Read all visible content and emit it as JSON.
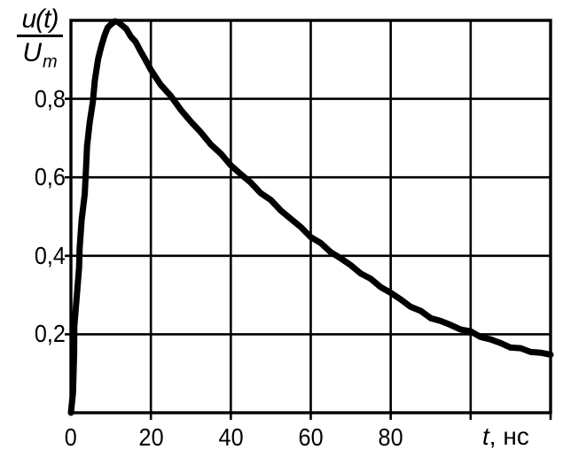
{
  "figure": {
    "background_color": "#ffffff",
    "ink_color": "#000000"
  },
  "chart_data": {
    "type": "line",
    "title": "",
    "ylabel": "u(t)/Um",
    "ylabel_fraction": {
      "numerator": "u(t)",
      "denominator_main": "U",
      "denominator_sub": "m"
    },
    "xlabel": "t, нс",
    "xlabel_variable": "t",
    "xlabel_unit": ", нс",
    "x_range": [
      0,
      120
    ],
    "y_range": [
      0,
      1.0
    ],
    "grid": true,
    "legend_position": "none",
    "x_ticks": [
      {
        "value": 0,
        "label": "0"
      },
      {
        "value": 20,
        "label": "20"
      },
      {
        "value": 40,
        "label": "40"
      },
      {
        "value": 60,
        "label": "60"
      },
      {
        "value": 80,
        "label": "80"
      }
    ],
    "y_ticks": [
      {
        "value": 0.2,
        "label": "0,2"
      },
      {
        "value": 0.4,
        "label": "0,4"
      },
      {
        "value": 0.6,
        "label": "0,6"
      },
      {
        "value": 0.8,
        "label": "0,8"
      }
    ],
    "x_gridlines": [
      20,
      40,
      60,
      80,
      100,
      120
    ],
    "y_gridlines": [
      0.2,
      0.4,
      0.6,
      0.8
    ],
    "series": [
      {
        "name": "u(t)/Um",
        "points": [
          [
            0,
            0
          ],
          [
            0.5,
            0.05
          ],
          [
            0.8,
            0.15
          ],
          [
            1.0,
            0.22
          ],
          [
            1.4,
            0.3
          ],
          [
            1.9,
            0.37
          ],
          [
            2.3,
            0.42
          ],
          [
            2.8,
            0.49
          ],
          [
            3.3,
            0.56
          ],
          [
            3.7,
            0.62
          ],
          [
            4.2,
            0.68
          ],
          [
            4.7,
            0.74
          ],
          [
            5.3,
            0.79
          ],
          [
            6.0,
            0.85
          ],
          [
            6.8,
            0.9
          ],
          [
            7.6,
            0.935
          ],
          [
            8.4,
            0.962
          ],
          [
            9.2,
            0.98
          ],
          [
            10.0,
            0.992
          ],
          [
            11.0,
            1.0
          ],
          [
            11.9,
            0.996
          ],
          [
            12.8,
            0.988
          ],
          [
            13.8,
            0.977
          ],
          [
            15.0,
            0.961
          ],
          [
            16.2,
            0.943
          ],
          [
            17.4,
            0.923
          ],
          [
            18.7,
            0.899
          ],
          [
            20,
            0.872
          ],
          [
            22.5,
            0.838
          ],
          [
            25,
            0.805
          ],
          [
            27.5,
            0.773
          ],
          [
            30,
            0.742
          ],
          [
            32.5,
            0.713
          ],
          [
            35,
            0.686
          ],
          [
            37.5,
            0.658
          ],
          [
            40,
            0.632
          ],
          [
            42.5,
            0.608
          ],
          [
            45,
            0.585
          ],
          [
            47.5,
            0.562
          ],
          [
            50,
            0.54
          ],
          [
            52.5,
            0.517
          ],
          [
            55,
            0.494
          ],
          [
            57.5,
            0.472
          ],
          [
            60,
            0.45
          ],
          [
            62.5,
            0.43
          ],
          [
            65,
            0.411
          ],
          [
            67.5,
            0.393
          ],
          [
            70,
            0.375
          ],
          [
            72.5,
            0.357
          ],
          [
            75,
            0.339
          ],
          [
            77.5,
            0.322
          ],
          [
            80,
            0.305
          ],
          [
            82.5,
            0.288
          ],
          [
            85,
            0.272
          ],
          [
            87.5,
            0.257
          ],
          [
            90,
            0.243
          ],
          [
            92.5,
            0.233
          ],
          [
            95,
            0.223
          ],
          [
            97.5,
            0.214
          ],
          [
            100,
            0.205
          ],
          [
            102.5,
            0.195
          ],
          [
            105,
            0.186
          ],
          [
            107.5,
            0.177
          ],
          [
            110,
            0.168
          ],
          [
            112.5,
            0.162
          ],
          [
            115,
            0.157
          ],
          [
            117.5,
            0.152
          ],
          [
            120,
            0.148
          ]
        ]
      }
    ]
  }
}
